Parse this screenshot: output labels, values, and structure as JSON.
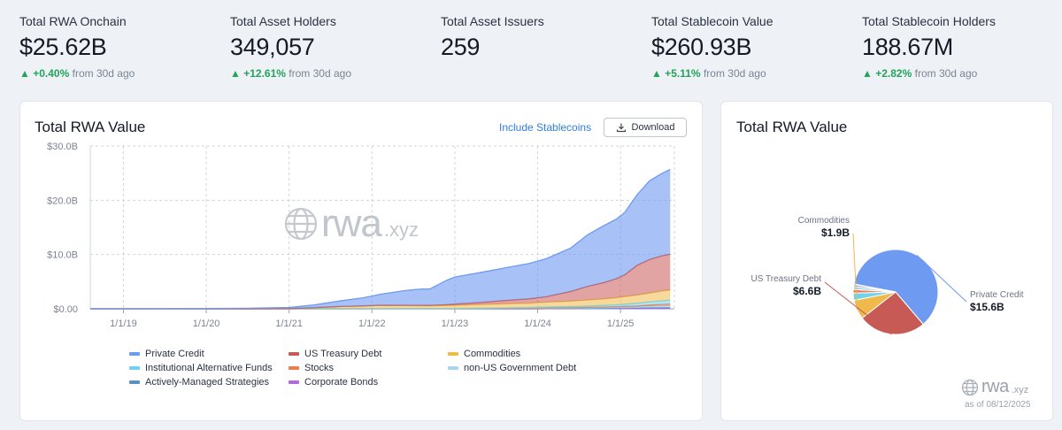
{
  "stats": [
    {
      "label": "Total RWA Onchain",
      "value": "$25.62B",
      "change": "+0.40%",
      "suffix": "from 30d ago"
    },
    {
      "label": "Total Asset Holders",
      "value": "349,057",
      "change": "+12.61%",
      "suffix": "from 30d ago"
    },
    {
      "label": "Total Asset Issuers",
      "value": "259",
      "change": "",
      "suffix": ""
    },
    {
      "label": "Total Stablecoin Value",
      "value": "$260.93B",
      "change": "+5.11%",
      "suffix": "from 30d ago"
    },
    {
      "label": "Total Stablecoin Holders",
      "value": "188.67M",
      "change": "+2.82%",
      "suffix": "from 30d ago"
    }
  ],
  "left_card": {
    "title": "Total RWA Value",
    "include_label": "Include Stablecoins",
    "download_label": "Download",
    "watermark": "rwa",
    "watermark_suffix": ".xyz"
  },
  "right_card": {
    "title": "Total RWA Value",
    "brand": "rwa",
    "brand_suffix": ".xyz",
    "as_of": "as of 08/12/2025"
  },
  "colors": {
    "private_credit": "#6e9af2",
    "us_treasury": "#c85a55",
    "commodities": "#efb94c",
    "institutional": "#70d3ec",
    "stocks": "#f07b4c",
    "non_us_gov": "#a9d5ee",
    "actively_managed": "#5d8fc4",
    "corporate_bonds": "#b06ae0"
  },
  "chart_data": [
    {
      "type": "area",
      "stacked": true,
      "title": "Total RWA Value",
      "ylim": [
        0,
        30
      ],
      "y_ticks": [
        "$0.00",
        "$10.0B",
        "$20.0B",
        "$30.0B"
      ],
      "y_tick_values": [
        0,
        10,
        20,
        30
      ],
      "x_ticks": [
        "1/1/19",
        "1/1/20",
        "1/1/21",
        "1/1/22",
        "1/1/23",
        "1/1/24",
        "1/1/25"
      ],
      "x_tick_values": [
        2019,
        2020,
        2021,
        2022,
        2023,
        2024,
        2025
      ],
      "xlim": [
        2018.6,
        2025.65
      ],
      "x": [
        2018.6,
        2019.0,
        2019.5,
        2020.0,
        2020.5,
        2021.0,
        2021.3,
        2021.6,
        2021.9,
        2022.1,
        2022.4,
        2022.6,
        2022.7,
        2022.9,
        2023.0,
        2023.3,
        2023.6,
        2023.9,
        2024.1,
        2024.4,
        2024.6,
        2024.8,
        2024.95,
        2025.05,
        2025.2,
        2025.35,
        2025.5,
        2025.6
      ],
      "series": [
        {
          "name": "Private Credit",
          "values": [
            0,
            0,
            0.02,
            0.05,
            0.1,
            0.2,
            0.5,
            1.0,
            1.5,
            2.0,
            2.7,
            3.0,
            3.0,
            4.5,
            5.0,
            5.5,
            6.0,
            6.5,
            7.0,
            8.0,
            9.5,
            10.5,
            11.0,
            11.5,
            13.0,
            14.5,
            15.2,
            15.6
          ]
        },
        {
          "name": "US Treasury Debt",
          "values": [
            0,
            0,
            0,
            0,
            0,
            0,
            0.01,
            0.02,
            0.03,
            0.05,
            0.08,
            0.1,
            0.1,
            0.15,
            0.2,
            0.35,
            0.6,
            0.8,
            1.0,
            1.8,
            2.5,
            3.0,
            3.5,
            4.0,
            5.5,
            6.2,
            6.5,
            6.6
          ]
        },
        {
          "name": "Commodities",
          "values": [
            0,
            0,
            0,
            0,
            0,
            0.05,
            0.2,
            0.4,
            0.5,
            0.6,
            0.55,
            0.5,
            0.5,
            0.55,
            0.6,
            0.7,
            0.75,
            0.8,
            0.9,
            1.0,
            1.1,
            1.2,
            1.3,
            1.4,
            1.5,
            1.6,
            1.8,
            1.9
          ]
        },
        {
          "name": "Institutional Alternative Funds",
          "values": [
            0,
            0,
            0,
            0,
            0,
            0,
            0,
            0,
            0,
            0,
            0,
            0,
            0,
            0,
            0,
            0.02,
            0.05,
            0.1,
            0.15,
            0.2,
            0.25,
            0.3,
            0.35,
            0.4,
            0.5,
            0.6,
            0.65,
            0.7
          ]
        },
        {
          "name": "Stocks",
          "values": [
            0,
            0,
            0,
            0,
            0,
            0,
            0,
            0,
            0,
            0,
            0,
            0,
            0,
            0,
            0,
            0,
            0.01,
            0.02,
            0.02,
            0.03,
            0.04,
            0.05,
            0.06,
            0.08,
            0.1,
            0.2,
            0.3,
            0.35
          ]
        },
        {
          "name": "non-US Government Debt",
          "values": [
            0,
            0,
            0,
            0,
            0,
            0,
            0,
            0,
            0.01,
            0.02,
            0.03,
            0.05,
            0.05,
            0.05,
            0.06,
            0.08,
            0.1,
            0.12,
            0.14,
            0.16,
            0.18,
            0.2,
            0.22,
            0.24,
            0.26,
            0.28,
            0.3,
            0.3
          ]
        },
        {
          "name": "Actively-Managed Strategies",
          "values": [
            0,
            0,
            0,
            0,
            0,
            0,
            0,
            0,
            0,
            0,
            0,
            0,
            0,
            0,
            0,
            0,
            0,
            0,
            0,
            0,
            0.02,
            0.05,
            0.08,
            0.1,
            0.12,
            0.15,
            0.17,
            0.18
          ]
        },
        {
          "name": "Corporate Bonds",
          "values": [
            0,
            0,
            0,
            0,
            0,
            0,
            0,
            0,
            0,
            0,
            0,
            0,
            0,
            0,
            0,
            0,
            0,
            0,
            0.01,
            0.01,
            0.02,
            0.02,
            0.03,
            0.03,
            0.04,
            0.05,
            0.05,
            0.05
          ]
        }
      ],
      "legend": [
        "Private Credit",
        "US Treasury Debt",
        "Commodities",
        "Institutional Alternative Funds",
        "Stocks",
        "non-US Government Debt",
        "Actively-Managed Strategies",
        "Corporate Bonds"
      ],
      "legend_position": "bottom",
      "grid": true
    },
    {
      "type": "pie",
      "title": "Total RWA Value",
      "slices": [
        {
          "name": "Private Credit",
          "value": 15.6,
          "label": "$15.6B"
        },
        {
          "name": "US Treasury Debt",
          "value": 6.6,
          "label": "$6.6B"
        },
        {
          "name": "Commodities",
          "value": 1.9,
          "label": "$1.9B"
        },
        {
          "name": "Institutional Alternative Funds",
          "value": 0.7,
          "label": ""
        },
        {
          "name": "Stocks",
          "value": 0.35,
          "label": ""
        },
        {
          "name": "non-US Government Debt",
          "value": 0.3,
          "label": ""
        },
        {
          "name": "Actively-Managed Strategies",
          "value": 0.18,
          "label": ""
        },
        {
          "name": "Corporate Bonds",
          "value": 0.05,
          "label": ""
        }
      ],
      "labelled": [
        {
          "name": "Commodities",
          "label": "$1.9B"
        },
        {
          "name": "US Treasury Debt",
          "label": "$6.6B"
        },
        {
          "name": "Private Credit",
          "label": "$15.6B"
        }
      ]
    }
  ]
}
